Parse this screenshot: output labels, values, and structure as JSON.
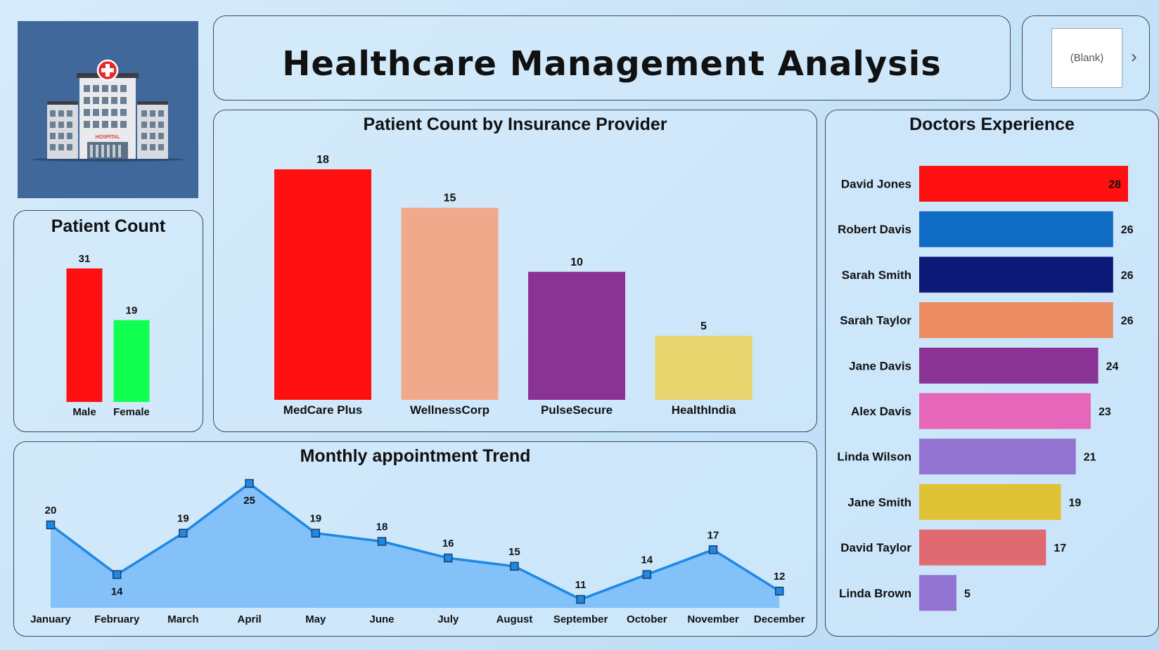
{
  "header": {
    "title": "Healthcare Management Analysis"
  },
  "slicer": {
    "value": "(Blank)"
  },
  "logo": {
    "text": "HOSPITAL"
  },
  "colors": {
    "accent_line": "#1e88e5",
    "area_fill": "#7bbcf8"
  },
  "chart_data": [
    {
      "id": "patient_count",
      "type": "bar",
      "title": "Patient Count",
      "categories": [
        "Male",
        "Female"
      ],
      "values": [
        31,
        19
      ],
      "colors": [
        "#ff1010",
        "#10ff50"
      ],
      "ylim": [
        0,
        31
      ]
    },
    {
      "id": "insurance",
      "type": "bar",
      "title": "Patient Count by Insurance Provider",
      "categories": [
        "MedCare Plus",
        "WellnessCorp",
        "PulseSecure",
        "HealthIndia"
      ],
      "values": [
        18,
        15,
        10,
        5
      ],
      "colors": [
        "#ff1010",
        "#f0a98a",
        "#8a3394",
        "#e8d46c"
      ],
      "ylim": [
        0,
        18
      ]
    },
    {
      "id": "doctors",
      "type": "bar",
      "orientation": "horizontal",
      "title": "Doctors Experience",
      "categories": [
        "David Jones",
        "Robert Davis",
        "Sarah Smith",
        "Sarah Taylor",
        "Jane Davis",
        "Alex Davis",
        "Linda Wilson",
        "Jane Smith",
        "David Taylor",
        "Linda Brown"
      ],
      "values": [
        28,
        26,
        26,
        26,
        24,
        23,
        21,
        19,
        17,
        5
      ],
      "colors": [
        "#ff1010",
        "#0f6bc4",
        "#0e1a78",
        "#ec8c62",
        "#8a3394",
        "#e667b9",
        "#9474d2",
        "#e0c236",
        "#e06a72",
        "#9474d2"
      ],
      "xlim": [
        0,
        28
      ]
    },
    {
      "id": "monthly",
      "type": "area",
      "title": "Monthly appointment Trend",
      "categories": [
        "January",
        "February",
        "March",
        "April",
        "May",
        "June",
        "July",
        "August",
        "September",
        "October",
        "November",
        "December"
      ],
      "values": [
        20,
        14,
        19,
        25,
        19,
        18,
        16,
        15,
        11,
        14,
        17,
        12
      ],
      "ylim": [
        11,
        25
      ]
    }
  ]
}
